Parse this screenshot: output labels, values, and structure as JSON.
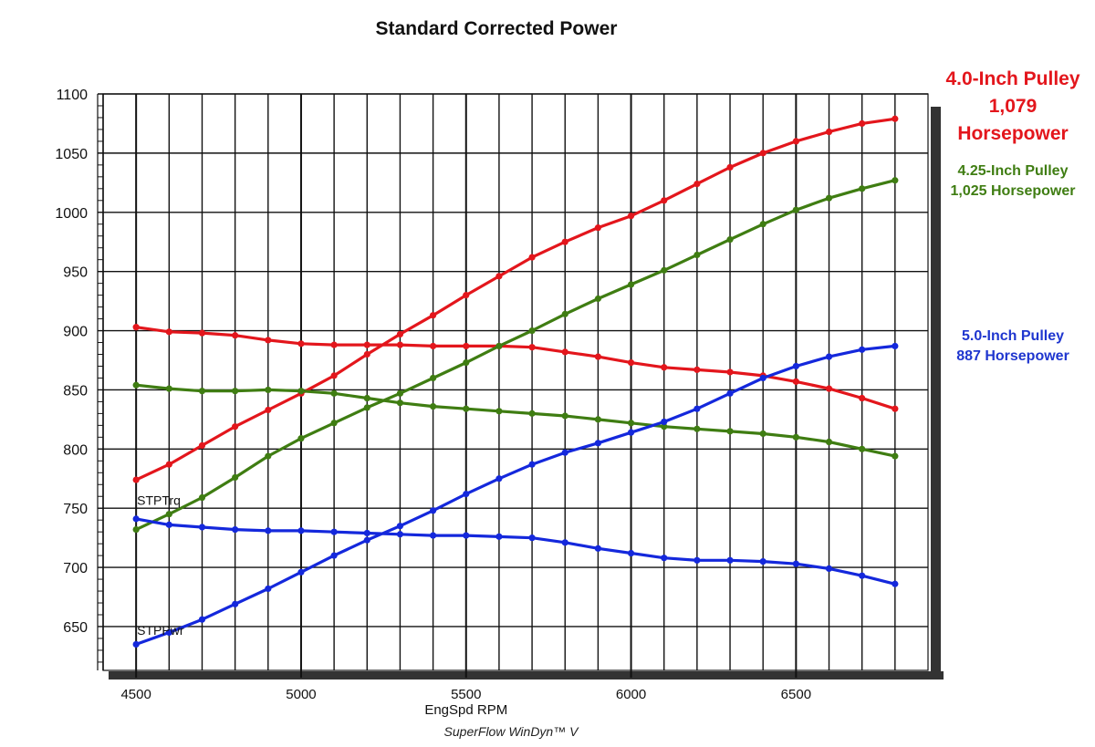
{
  "chart_data": {
    "type": "line",
    "title": "Standard Corrected Power",
    "xlabel": "EngSpd RPM",
    "ylabel": "",
    "footer": "SuperFlow WinDyn™ V",
    "xlim": [
      4400,
      6900
    ],
    "ylim": [
      613,
      1100
    ],
    "xticks": [
      4500,
      5000,
      5500,
      6000,
      6500
    ],
    "yticks": [
      650,
      700,
      750,
      800,
      850,
      900,
      950,
      1000,
      1050,
      1100
    ],
    "grid": true,
    "curve_labels": {
      "torque": "STPTrq",
      "power": "STPPwr"
    },
    "x": [
      4500,
      4600,
      4700,
      4800,
      4900,
      5000,
      5100,
      5200,
      5300,
      5400,
      5500,
      5600,
      5700,
      5800,
      5900,
      6000,
      6100,
      6200,
      6300,
      6400,
      6500,
      6600,
      6700,
      6800
    ],
    "series": [
      {
        "name": "4.0-Inch Pulley STPPwr",
        "color": "#e3161c",
        "values": [
          774,
          787,
          803,
          819,
          833,
          847,
          862,
          880,
          897,
          913,
          930,
          946,
          962,
          975,
          987,
          997,
          1010,
          1024,
          1038,
          1050,
          1060,
          1068,
          1075,
          1079
        ]
      },
      {
        "name": "4.0-Inch Pulley STPTrq",
        "color": "#e3161c",
        "values": [
          903,
          899,
          898,
          896,
          892,
          889,
          888,
          888,
          888,
          887,
          887,
          887,
          886,
          882,
          878,
          873,
          869,
          867,
          865,
          862,
          857,
          851,
          843,
          834
        ]
      },
      {
        "name": "4.25-Inch Pulley STPPwr",
        "color": "#3f7d12",
        "values": [
          732,
          745,
          759,
          776,
          794,
          809,
          822,
          835,
          847,
          860,
          873,
          887,
          900,
          914,
          927,
          939,
          951,
          964,
          977,
          990,
          1002,
          1012,
          1020,
          1027
        ]
      },
      {
        "name": "4.25-Inch Pulley STPTrq",
        "color": "#3f7d12",
        "values": [
          854,
          851,
          849,
          849,
          850,
          849,
          847,
          843,
          839,
          836,
          834,
          832,
          830,
          828,
          825,
          822,
          819,
          817,
          815,
          813,
          810,
          806,
          800,
          794
        ]
      },
      {
        "name": "5.0-Inch Pulley STPPwr",
        "color": "#1428dc",
        "values": [
          635,
          645,
          656,
          669,
          682,
          696,
          710,
          723,
          735,
          748,
          762,
          775,
          787,
          797,
          805,
          814,
          823,
          834,
          847,
          860,
          870,
          878,
          884,
          887
        ]
      },
      {
        "name": "5.0-Inch Pulley STPTrq",
        "color": "#1428dc",
        "values": [
          741,
          736,
          734,
          732,
          731,
          731,
          730,
          729,
          728,
          727,
          727,
          726,
          725,
          721,
          716,
          712,
          708,
          706,
          706,
          705,
          703,
          699,
          693,
          686
        ]
      }
    ]
  },
  "annotations": {
    "red": {
      "line1": "4.0-Inch Pulley",
      "line2": "1,079",
      "line3": "Horsepower"
    },
    "green": {
      "line1": "4.25-Inch Pulley",
      "line2": "1,025 Horsepower"
    },
    "blue": {
      "line1": "5.0-Inch Pulley",
      "line2": "887 Horsepower"
    }
  }
}
